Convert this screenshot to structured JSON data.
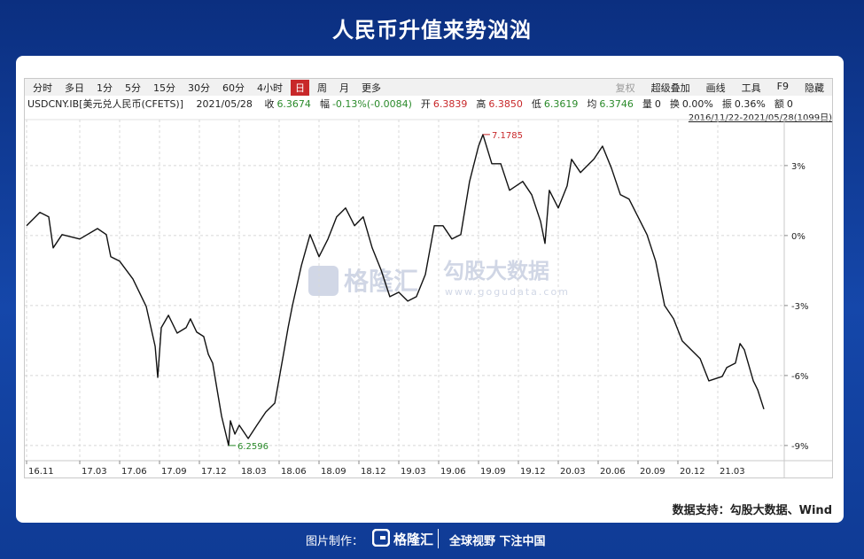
{
  "header": {
    "title": "人民币升值来势汹汹"
  },
  "toolbar": {
    "periods": [
      "分时",
      "多日",
      "1分",
      "5分",
      "15分",
      "30分",
      "60分",
      "4小时",
      "日",
      "周",
      "月",
      "更多"
    ],
    "active": 8,
    "tools": [
      {
        "text": "复权",
        "color": "#9a9a9a"
      },
      {
        "text": "超级叠加",
        "color": "#222222"
      },
      {
        "text": "画线",
        "color": "#222222"
      },
      {
        "text": "工具",
        "color": "#222222"
      },
      {
        "text": "F9",
        "color": "#222222"
      },
      {
        "text": "隐藏",
        "color": "#222222"
      }
    ],
    "quote": {
      "symbol": "USDCNY.IB[美元兑人民币(CFETS)]",
      "date": "2021/05/28",
      "fields": [
        {
          "label": "收",
          "value": "6.3674",
          "color": "#2a8a2a"
        },
        {
          "label": "幅",
          "value": "-0.13%(-0.0084)",
          "color": "#2a8a2a"
        },
        {
          "label": "开",
          "value": "6.3839",
          "color": "#c8282a"
        },
        {
          "label": "高",
          "value": "6.3850",
          "color": "#c8282a"
        },
        {
          "label": "低",
          "value": "6.3619",
          "color": "#2a8a2a"
        },
        {
          "label": "均",
          "value": "6.3746",
          "color": "#2a8a2a"
        },
        {
          "label": "量",
          "value": "0",
          "color": "#222222"
        },
        {
          "label": "换",
          "value": "0.00%",
          "color": "#222222"
        },
        {
          "label": "振",
          "value": "0.36%",
          "color": "#222222"
        },
        {
          "label": "额",
          "value": "0",
          "color": "#222222"
        }
      ]
    },
    "range": "2016/11/22-2021/05/28(1099日)"
  },
  "chart_data": {
    "type": "line",
    "x": [
      0,
      1,
      1.67,
      2,
      2.67,
      4,
      5.33,
      6,
      6.33,
      7,
      8,
      9,
      9.67,
      9.87,
      10.13,
      10.67,
      11.33,
      12,
      12.33,
      12.8,
      13.33,
      13.67,
      14,
      14.33,
      14.67,
      15.2,
      15.33,
      15.67,
      16,
      16.67,
      17.33,
      18,
      18.67,
      19.33,
      19.67,
      20,
      20.67,
      21.33,
      22,
      22.67,
      23.33,
      24,
      24.67,
      25.33,
      26,
      26.67,
      27.33,
      28,
      28.67,
      29.33,
      30,
      30.67,
      31.33,
      32,
      32.67,
      33.33,
      34,
      34.33,
      35,
      35.67,
      36.33,
      37.33,
      38,
      38.67,
      39,
      39.33,
      40,
      40.67,
      41,
      41.67,
      42.33,
      42.67,
      43.33,
      44,
      44.67,
      45.33,
      46,
      46.67,
      47.33,
      48,
      48.67,
      49.33,
      50,
      50.67,
      51.33,
      52.33,
      52.67,
      53.33,
      53.67,
      54,
      54.67,
      55,
      55.47
    ],
    "series": [
      {
        "name": "USDCNY.IB",
        "color": "#111111",
        "values": [
          0.42,
          0.99,
          0.8,
          -0.53,
          0.04,
          -0.15,
          0.3,
          0.04,
          -0.91,
          -1.1,
          -1.86,
          -3.04,
          -4.75,
          -6.08,
          -3.95,
          -3.42,
          -4.18,
          -3.95,
          -3.57,
          -4.14,
          -4.33,
          -5.09,
          -5.47,
          -6.61,
          -7.75,
          -9.0,
          -7.94,
          -8.51,
          -8.13,
          -8.7,
          -8.13,
          -7.56,
          -7.18,
          -5.09,
          -3.95,
          -3.0,
          -1.29,
          0.04,
          -0.91,
          -0.15,
          0.8,
          1.18,
          0.42,
          0.8,
          -0.53,
          -1.48,
          -2.62,
          -2.43,
          -2.81,
          -2.62,
          -1.67,
          0.42,
          0.42,
          -0.15,
          0.04,
          2.32,
          3.83,
          4.33,
          3.08,
          3.08,
          1.94,
          2.32,
          1.75,
          0.61,
          -0.34,
          1.94,
          1.18,
          2.13,
          3.27,
          2.7,
          3.08,
          3.27,
          3.83,
          2.89,
          1.75,
          1.56,
          0.8,
          0.04,
          -1.1,
          -3.0,
          -3.57,
          -4.52,
          -4.9,
          -5.28,
          -6.23,
          -6.04,
          -5.66,
          -5.47,
          -4.63,
          -4.9,
          -6.23,
          -6.61,
          -7.44
        ]
      }
    ],
    "annotations": [
      {
        "text": "7.1785",
        "at": "max",
        "color": "#c8282a"
      },
      {
        "text": "6.2596",
        "at": "min",
        "color": "#2a8a2a"
      }
    ],
    "xlim": [
      0,
      57
    ],
    "xticks": [
      {
        "value": 0,
        "label": "16.11"
      },
      {
        "value": 4,
        "label": "17.03"
      },
      {
        "value": 7,
        "label": "17.06"
      },
      {
        "value": 10,
        "label": "17.09"
      },
      {
        "value": 13,
        "label": "17.12"
      },
      {
        "value": 16,
        "label": "18.03"
      },
      {
        "value": 19,
        "label": "18.06"
      },
      {
        "value": 22,
        "label": "18.09"
      },
      {
        "value": 25,
        "label": "18.12"
      },
      {
        "value": 28,
        "label": "19.03"
      },
      {
        "value": 31,
        "label": "19.06"
      },
      {
        "value": 34,
        "label": "19.09"
      },
      {
        "value": 37,
        "label": "19.12"
      },
      {
        "value": 40,
        "label": "20.03"
      },
      {
        "value": 43,
        "label": "20.06"
      },
      {
        "value": 46,
        "label": "20.09"
      },
      {
        "value": 49,
        "label": "20.12"
      },
      {
        "value": 52,
        "label": "21.03"
      }
    ],
    "ylim": [
      -9.65,
      4.97
    ],
    "yticks": [
      {
        "value": 3,
        "label": "3%"
      },
      {
        "value": 0,
        "label": "0%"
      },
      {
        "value": -3,
        "label": "-3%"
      },
      {
        "value": -6,
        "label": "-6%"
      },
      {
        "value": -9,
        "label": "-9%"
      }
    ],
    "grid": true
  },
  "watermark": {
    "brand": "格隆汇",
    "name": "勾股大数据",
    "url": "www.gogudata.com"
  },
  "footer": {
    "source": "数据支持：勾股大数据、Wind",
    "maker": "图片制作：",
    "logo": "格隆汇",
    "slogan": "全球视野 下注中国"
  }
}
